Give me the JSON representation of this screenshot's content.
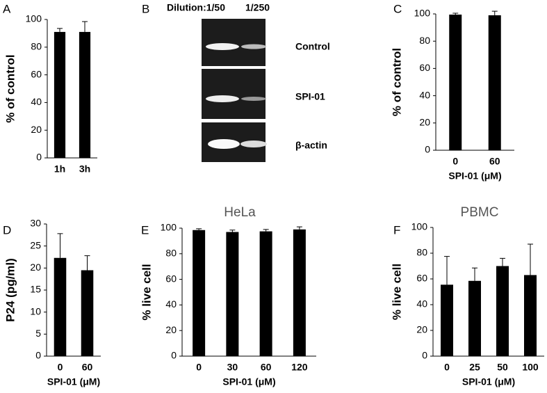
{
  "chart_data": [
    {
      "type": "bar",
      "panel": "A",
      "ylabel": "% of control",
      "categories": [
        "1h",
        "3h"
      ],
      "values": [
        91,
        91
      ],
      "errors": [
        2.5,
        7.5
      ],
      "color": "#000000",
      "ylim": [
        0,
        100
      ],
      "yticks": [
        0,
        20,
        40,
        60,
        80,
        100
      ]
    },
    {
      "type": "bar",
      "panel": "C",
      "ylabel": "% of control",
      "xlabel": "SPI-01 (μM)",
      "categories": [
        "0",
        "60"
      ],
      "values": [
        99.5,
        99
      ],
      "errors": [
        1,
        3
      ],
      "color": "#000000",
      "ylim": [
        0,
        100
      ],
      "yticks": [
        0,
        20,
        40,
        60,
        80,
        100
      ]
    },
    {
      "type": "bar",
      "panel": "D",
      "ylabel": "P24 (pg/ml)",
      "xlabel": "SPI-01 (μM)",
      "categories": [
        "0",
        "60"
      ],
      "values": [
        22.3,
        19.5
      ],
      "errors": [
        5.5,
        3.3
      ],
      "color": "#000000",
      "ylim": [
        0,
        30
      ],
      "yticks": [
        0,
        5,
        10,
        15,
        20,
        25,
        30
      ]
    },
    {
      "type": "bar",
      "panel": "E",
      "title": "HeLa",
      "ylabel": "% live cell",
      "xlabel": "SPI-01 (μM)",
      "categories": [
        "0",
        "30",
        "60",
        "120"
      ],
      "values": [
        98.5,
        97,
        97.5,
        99
      ],
      "errors": [
        1,
        1.5,
        1.5,
        2
      ],
      "color": "#000000",
      "ylim": [
        0,
        100
      ],
      "yticks": [
        0,
        20,
        40,
        60,
        80,
        100
      ]
    },
    {
      "type": "bar",
      "panel": "F",
      "title": "PBMC",
      "ylabel": "% live cell",
      "xlabel": "SPI-01 (μM)",
      "categories": [
        "0",
        "25",
        "50",
        "100"
      ],
      "values": [
        55.5,
        58.5,
        70,
        63
      ],
      "errors": [
        22,
        10,
        6,
        24
      ],
      "color": "#000000",
      "ylim": [
        0,
        100
      ],
      "yticks": [
        0,
        20,
        40,
        60,
        80,
        100
      ]
    }
  ],
  "gel": {
    "panel": "B",
    "dilutions": [
      "Dilution:1/50",
      "1/250"
    ],
    "rows": [
      "Control",
      "SPI-01",
      "β-actin"
    ]
  }
}
